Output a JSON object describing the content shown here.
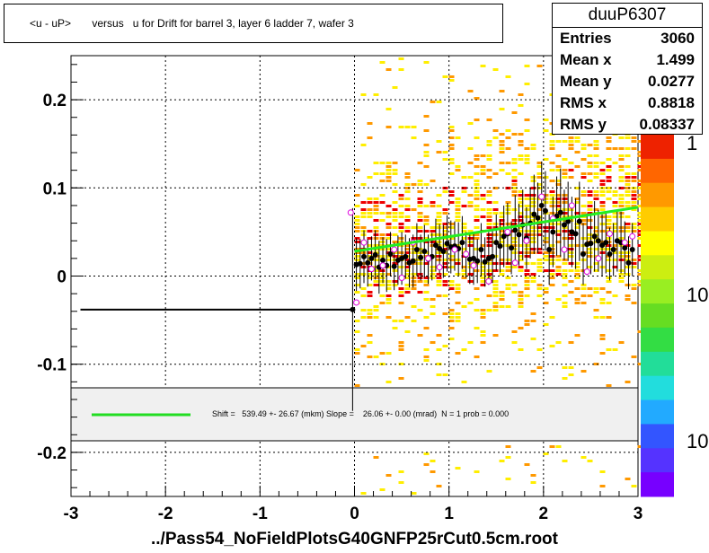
{
  "header": {
    "title": "<u - uP>       versus   u for Drift for barrel 3, layer 6 ladder 7, wafer 3"
  },
  "stats": {
    "name": "duuP6307",
    "rows": [
      {
        "label": "Entries",
        "value": "3060"
      },
      {
        "label": "Mean x",
        "value": "1.499"
      },
      {
        "label": "Mean y",
        "value": "0.0277"
      },
      {
        "label": "RMS x",
        "value": "0.8818"
      },
      {
        "label": "RMS y",
        "value": "0.08337"
      }
    ]
  },
  "fit_legend": {
    "text": "Shift =   539.49 +- 26.67 (mkm) Slope =    26.06 +- 0.00 (mrad)  N = 1 prob = 0.000",
    "line_color": "#22dd22"
  },
  "footer": "../Pass54_NoFieldPlotsG40GNFP25rCut0.5cm.root",
  "colors": {
    "fit_line": "#22ee22",
    "profile": "#000000",
    "open_markers": "#dd00dd",
    "legend_bg": "#f0f0f0",
    "histogram_low": "#ffee00",
    "histogram_mid": "#ff9900",
    "histogram_high": "#ee0000"
  },
  "chart_data": {
    "type": "scatter",
    "xlim": [
      -3,
      3
    ],
    "ylim": [
      -0.25,
      0.25
    ],
    "x_ticks": [
      -3,
      -2,
      -1,
      0,
      1,
      2,
      3
    ],
    "x_tick_labels": [
      "-3",
      "-2",
      "-1",
      "0",
      "1",
      "2",
      "3"
    ],
    "y_ticks": [
      -0.2,
      -0.1,
      0,
      0.1,
      0.2
    ],
    "y_tick_labels": [
      "-0.2",
      "-0.1",
      "0",
      "0.1",
      "0.2"
    ],
    "grid": true,
    "colorbar_labels": [
      "1",
      "10",
      "10"
    ],
    "profile_flat_segment": {
      "x": [
        -2.9,
        -0.02
      ],
      "y": -0.038
    },
    "fit_line": {
      "x": [
        0.0,
        3.0
      ],
      "y": [
        0.028,
        0.078
      ]
    },
    "profile_points": {
      "x": [
        -0.02,
        0.02,
        0.06,
        0.1,
        0.14,
        0.18,
        0.22,
        0.26,
        0.3,
        0.34,
        0.38,
        0.42,
        0.46,
        0.5,
        0.54,
        0.58,
        0.62,
        0.66,
        0.7,
        0.74,
        0.78,
        0.82,
        0.86,
        0.9,
        0.94,
        0.98,
        1.02,
        1.06,
        1.1,
        1.14,
        1.18,
        1.22,
        1.26,
        1.3,
        1.34,
        1.38,
        1.42,
        1.46,
        1.5,
        1.54,
        1.58,
        1.62,
        1.66,
        1.7,
        1.74,
        1.78,
        1.82,
        1.86,
        1.9,
        1.94,
        1.98,
        2.02,
        2.06,
        2.1,
        2.14,
        2.18,
        2.22,
        2.26,
        2.3,
        2.34,
        2.38,
        2.42,
        2.46,
        2.5,
        2.54,
        2.58,
        2.62,
        2.66,
        2.7,
        2.74,
        2.78,
        2.82,
        2.86,
        2.9,
        2.94
      ],
      "y": [
        -0.038,
        0.013,
        0.014,
        0.022,
        0.015,
        0.02,
        0.024,
        0.01,
        0.018,
        0.012,
        0.025,
        0.011,
        0.018,
        0.02,
        0.022,
        0.015,
        0.017,
        0.03,
        0.021,
        0.028,
        0.019,
        0.022,
        0.035,
        0.031,
        0.028,
        0.037,
        0.033,
        0.034,
        0.031,
        0.038,
        0.024,
        0.019,
        0.02,
        0.017,
        0.03,
        0.016,
        0.02,
        0.022,
        0.038,
        0.034,
        0.045,
        0.048,
        0.032,
        0.052,
        0.047,
        0.058,
        0.043,
        0.06,
        0.07,
        0.066,
        0.08,
        0.074,
        0.03,
        0.05,
        0.068,
        0.072,
        0.058,
        0.062,
        0.05,
        0.048,
        0.062,
        0.025,
        0.036,
        0.037,
        0.045,
        0.04,
        0.035,
        0.038,
        0.025,
        0.03,
        0.04,
        0.038,
        0.032,
        0.015,
        0.03
      ],
      "err": [
        0.115,
        0.03,
        0.028,
        0.03,
        0.027,
        0.025,
        0.028,
        0.03,
        0.026,
        0.03,
        0.025,
        0.027,
        0.028,
        0.03,
        0.025,
        0.028,
        0.03,
        0.03,
        0.026,
        0.03,
        0.028,
        0.027,
        0.03,
        0.028,
        0.03,
        0.032,
        0.03,
        0.028,
        0.03,
        0.03,
        0.026,
        0.028,
        0.03,
        0.025,
        0.03,
        0.028,
        0.03,
        0.03,
        0.032,
        0.03,
        0.035,
        0.035,
        0.03,
        0.04,
        0.035,
        0.04,
        0.035,
        0.04,
        0.045,
        0.04,
        0.05,
        0.045,
        0.04,
        0.04,
        0.045,
        0.05,
        0.04,
        0.045,
        0.04,
        0.04,
        0.045,
        0.035,
        0.035,
        0.035,
        0.04,
        0.035,
        0.035,
        0.035,
        0.03,
        0.03,
        0.035,
        0.035,
        0.03,
        0.03,
        0.03
      ]
    },
    "open_points": {
      "x": [
        -0.04,
        0.02,
        0.1,
        0.18,
        0.3,
        0.42,
        0.5,
        0.62,
        0.78,
        0.9,
        1.06,
        1.18,
        1.26,
        1.42,
        1.62,
        1.7,
        1.82,
        1.98,
        2.1,
        2.22,
        2.3,
        2.46,
        2.58,
        2.7,
        2.86,
        2.94
      ],
      "y": [
        0.072,
        -0.03,
        0.038,
        0.008,
        0.012,
        0.03,
        -0.002,
        0.038,
        0.02,
        0.01,
        0.03,
        0.025,
        0.012,
        -0.006,
        0.05,
        0.015,
        0.04,
        0.09,
        0.065,
        0.03,
        0.08,
        0.005,
        0.02,
        0.048,
        0.038,
        0.045
      ]
    },
    "histogram_cells_xrange": [
      0.0,
      3.0
    ],
    "histogram_cells_yrange": [
      -0.25,
      0.25
    ]
  }
}
